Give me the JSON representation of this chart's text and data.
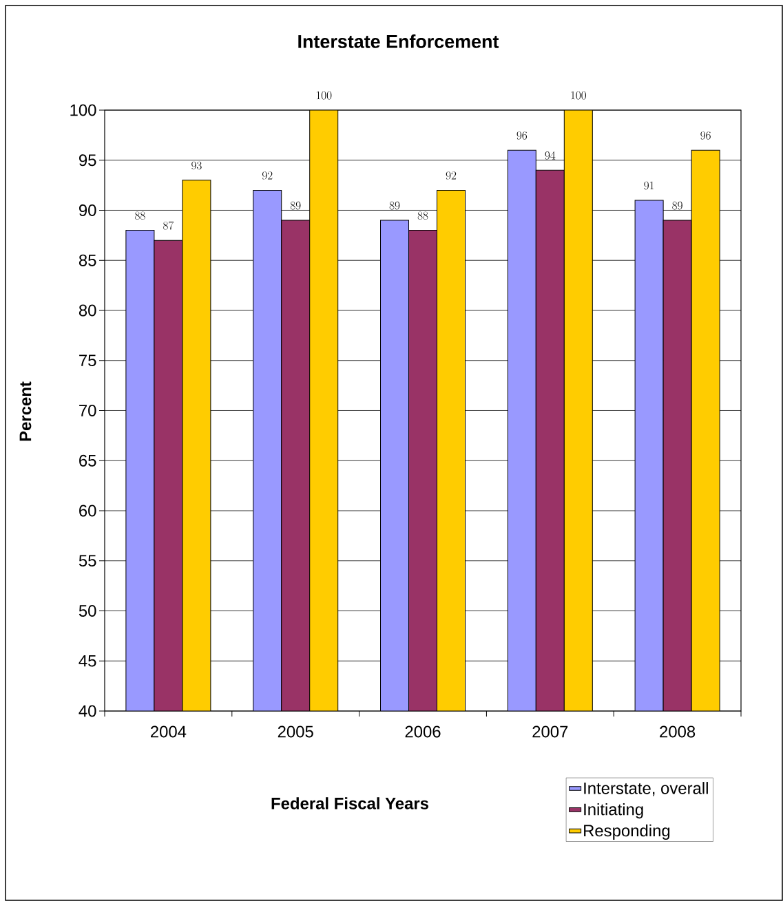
{
  "chart_data": {
    "type": "bar",
    "title": "Interstate Enforcement",
    "xlabel": "Federal Fiscal Years",
    "ylabel": "Percent",
    "categories": [
      "2004",
      "2005",
      "2006",
      "2007",
      "2008"
    ],
    "series": [
      {
        "name": "Interstate, overall",
        "color": "#9999ff",
        "values": [
          88,
          92,
          89,
          96,
          91
        ]
      },
      {
        "name": "Initiating",
        "color": "#993366",
        "values": [
          87,
          89,
          88,
          94,
          89
        ]
      },
      {
        "name": "Responding",
        "color": "#ffcc00",
        "values": [
          93,
          100,
          92,
          100,
          96
        ]
      }
    ],
    "ylim": [
      40,
      100
    ],
    "yticks": [
      40,
      45,
      50,
      55,
      60,
      65,
      70,
      75,
      80,
      85,
      90,
      95,
      100
    ],
    "grid": "y",
    "legend": "bottom right",
    "data_labels": true
  }
}
